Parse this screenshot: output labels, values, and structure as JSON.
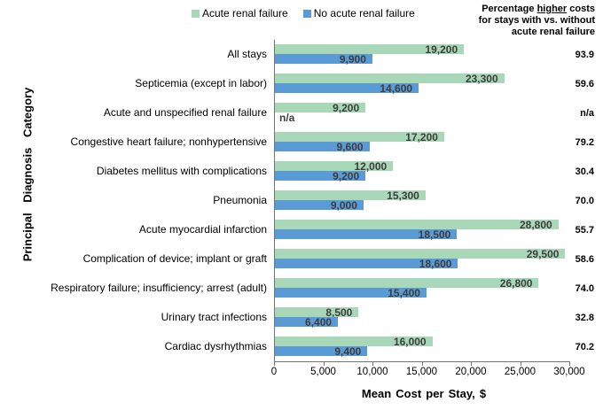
{
  "chart_data": {
    "type": "bar",
    "orientation": "horizontal",
    "title": "",
    "xlabel": "Mean Cost per Stay, $",
    "ylabel": "Principal Diagnosis Category",
    "xlim": [
      0,
      30000
    ],
    "xticks": [
      0,
      5000,
      10000,
      15000,
      20000,
      25000,
      30000
    ],
    "xtick_labels": [
      "0",
      "5,000",
      "10,000",
      "15,000",
      "20,000",
      "25,000",
      "30,000"
    ],
    "grid": false,
    "legend_position": "top",
    "categories": [
      "All stays",
      "Septicemia (except in labor)",
      "Acute and unspecified renal failure",
      "Congestive heart failure; nonhypertensive",
      "Diabetes mellitus with complications",
      "Pneumonia",
      "Acute myocardial infarction",
      "Complication of device; implant or graft",
      "Respiratory failure; insufficiency; arrest (adult)",
      "Urinary tract infections",
      "Cardiac dysrhythmias"
    ],
    "series": [
      {
        "name": "Acute renal failure",
        "color": "#a8d8b8",
        "values": [
          19200,
          23300,
          9200,
          17200,
          12000,
          15300,
          28800,
          29500,
          26800,
          8500,
          16000
        ],
        "labels": [
          "19,200",
          "23,300",
          "9,200",
          "17,200",
          "12,000",
          "15,300",
          "28,800",
          "29,500",
          "26,800",
          "8,500",
          "16,000"
        ]
      },
      {
        "name": "No acute renal failure",
        "color": "#5b9bd5",
        "values": [
          9900,
          14600,
          null,
          9600,
          9200,
          9000,
          18500,
          18600,
          15400,
          6400,
          9400
        ],
        "labels": [
          "9,900",
          "14,600",
          "n/a",
          "9,600",
          "9,200",
          "9,000",
          "18,500",
          "18,600",
          "15,400",
          "6,400",
          "9,400"
        ]
      }
    ],
    "percent_column": {
      "header_line1_pre": "Percentage ",
      "header_line1_underlined": "higher",
      "header_line1_post": " costs",
      "header_line2": "for stays with vs. without",
      "header_line3": "acute renal failure",
      "values": [
        "93.9",
        "59.6",
        "n/a",
        "79.2",
        "30.4",
        "70.0",
        "55.7",
        "58.6",
        "74.0",
        "32.8",
        "70.2"
      ]
    }
  }
}
